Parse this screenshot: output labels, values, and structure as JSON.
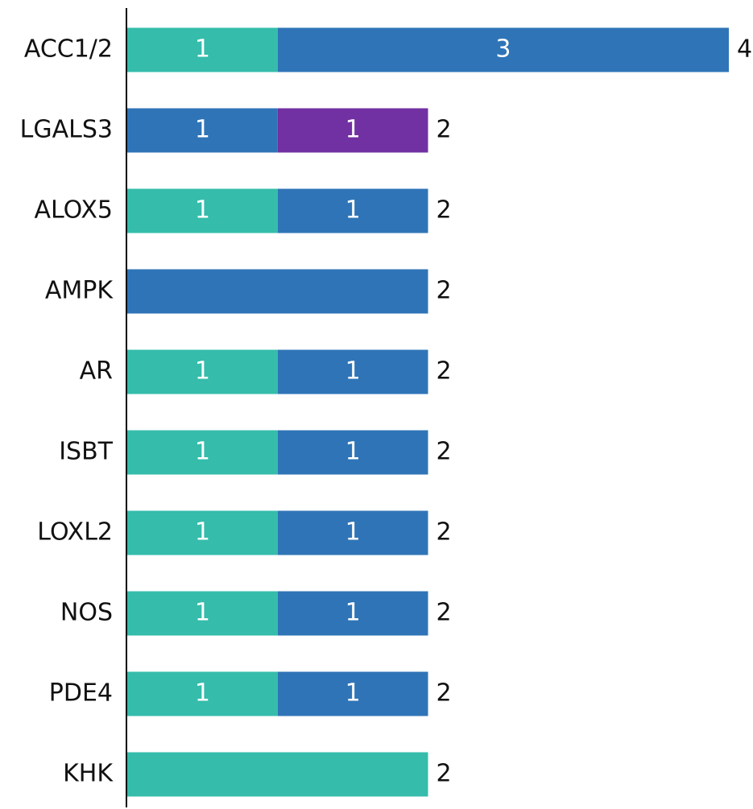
{
  "chart_data": {
    "type": "stacked_barh",
    "categories": [
      "ACC1/2",
      "LGALS3",
      "ALOX5",
      "AMPK",
      "AR",
      "ISBT",
      "LOXL2",
      "NOS",
      "PDE4",
      "KHK"
    ],
    "series": [
      {
        "color": "#35bcab",
        "values": [
          1,
          null,
          1,
          null,
          1,
          1,
          1,
          1,
          1,
          2
        ]
      },
      {
        "color": "#2f74b7",
        "values": [
          3,
          1,
          1,
          2,
          1,
          1,
          1,
          1,
          1,
          null
        ]
      },
      {
        "color": "#7231a2",
        "values": [
          null,
          1,
          null,
          null,
          null,
          null,
          null,
          null,
          null,
          null
        ]
      }
    ],
    "totals": [
      4,
      2,
      2,
      2,
      2,
      2,
      2,
      2,
      2,
      2
    ],
    "xlim": [
      0,
      4
    ]
  }
}
